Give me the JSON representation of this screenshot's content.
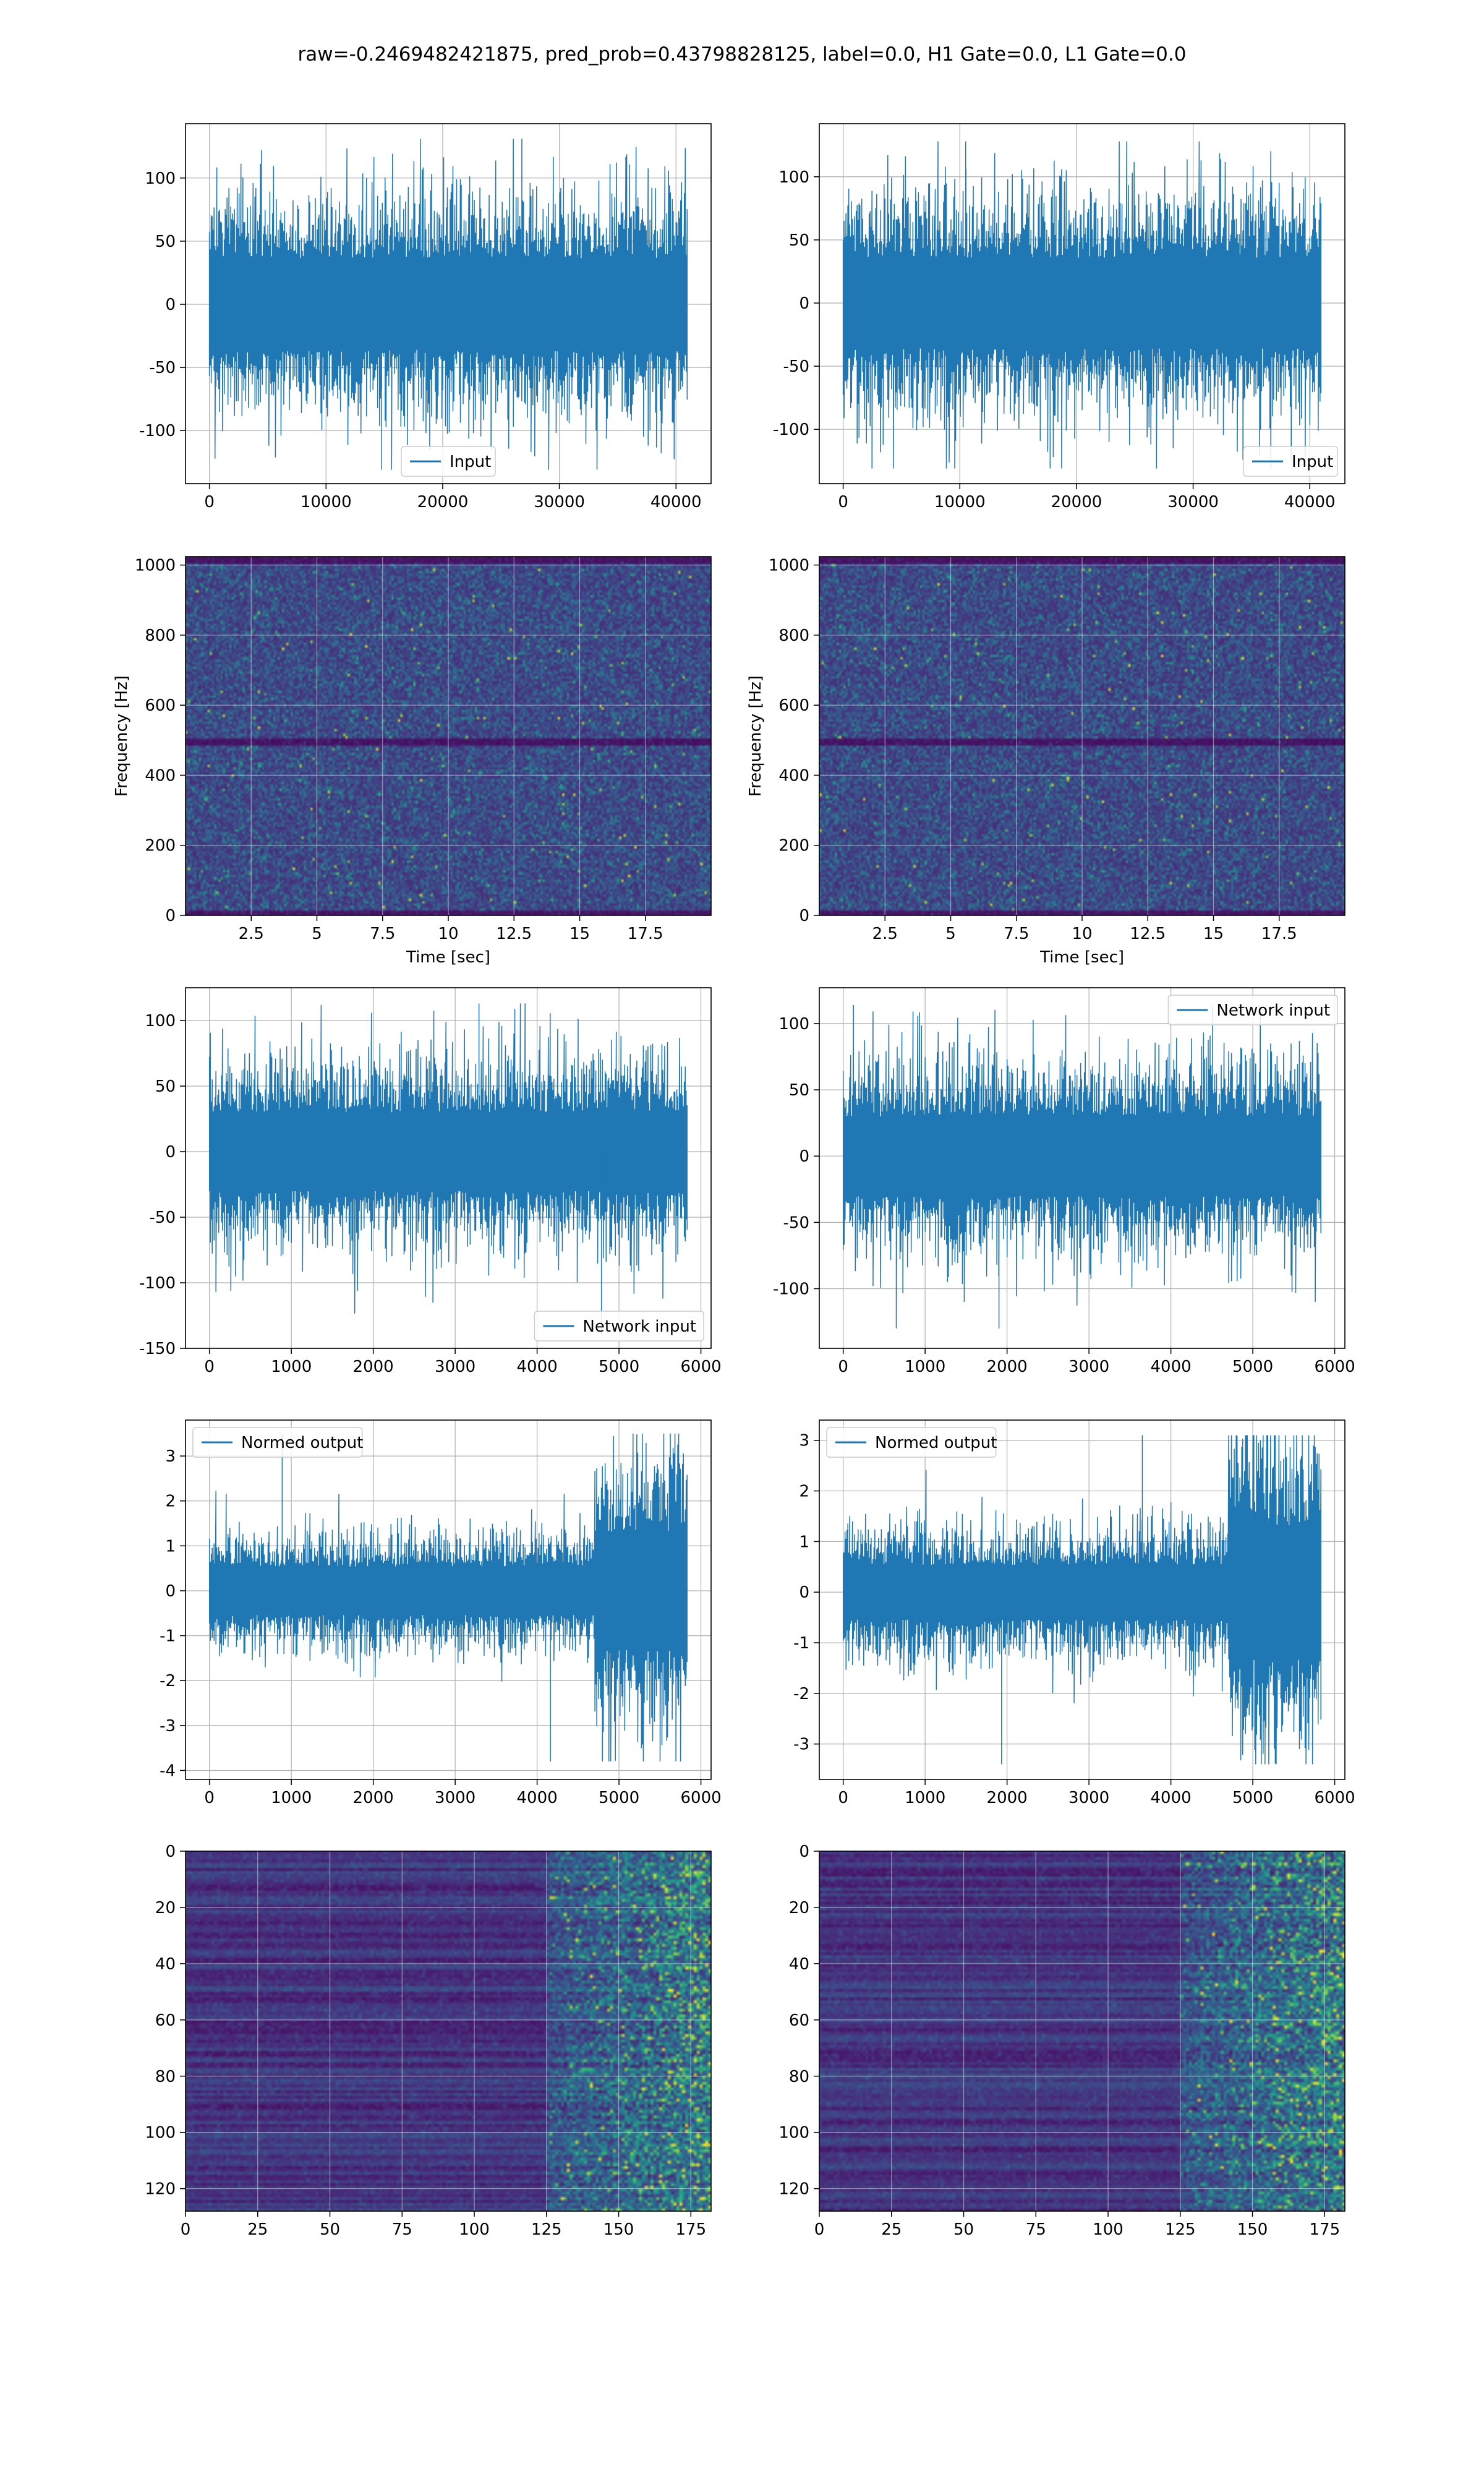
{
  "figure": {
    "title": "raw=-0.2469482421875, pred_prob=0.43798828125, label=0.0, H1 Gate=0.0, L1 Gate=0.0"
  },
  "colors": {
    "line": "#1f77b4",
    "grid": "#b0b0b0",
    "axes_edge": "#000000",
    "heatmap_low": "#440154",
    "heatmap_mid": "#21918c",
    "heatmap_high": "#fde725"
  },
  "chart_data": [
    {
      "id": "input-h1",
      "type": "line",
      "column": 0,
      "row": 0,
      "series": [
        {
          "name": "Input",
          "n_samples": 40960,
          "amplitude_std": 30,
          "peak_max": 131,
          "peak_min": -131
        }
      ],
      "xlim": [
        -2048,
        43008
      ],
      "ylim": [
        -142,
        143
      ],
      "xticks": [
        0,
        10000,
        20000,
        30000,
        40000
      ],
      "yticks": [
        100,
        50,
        0,
        -50,
        -100
      ],
      "xlabel": "",
      "ylabel": "",
      "grid": true,
      "legend": "lower center"
    },
    {
      "id": "input-l1",
      "type": "line",
      "column": 1,
      "row": 0,
      "series": [
        {
          "name": "Input",
          "n_samples": 40960,
          "amplitude_std": 30,
          "peak_max": 128,
          "peak_min": -131
        }
      ],
      "xlim": [
        -2048,
        43008
      ],
      "ylim": [
        -143,
        142
      ],
      "xticks": [
        0,
        10000,
        20000,
        30000,
        40000
      ],
      "yticks": [
        100,
        50,
        0,
        -50,
        -100
      ],
      "xlabel": "",
      "ylabel": "",
      "grid": true,
      "legend": "lower right"
    },
    {
      "id": "spectrogram-h1",
      "type": "heatmap",
      "column": 0,
      "row": 1,
      "x_range": [
        0,
        20
      ],
      "y_range": [
        0,
        1024
      ],
      "xticks": [
        2.5,
        5.0,
        7.5,
        10.0,
        12.5,
        15.0,
        17.5
      ],
      "yticks": [
        1000,
        800,
        600,
        400,
        200,
        0
      ],
      "xlabel": "Time [sec]",
      "ylabel": "Frequency [Hz]",
      "grid": true,
      "colormap": "viridis"
    },
    {
      "id": "spectrogram-l1",
      "type": "heatmap",
      "column": 1,
      "row": 1,
      "x_range": [
        0,
        20
      ],
      "y_range": [
        0,
        1024
      ],
      "xticks": [
        2.5,
        5.0,
        7.5,
        10.0,
        12.5,
        15.0,
        17.5
      ],
      "yticks": [
        1000,
        800,
        600,
        400,
        200,
        0
      ],
      "xlabel": "Time [sec]",
      "ylabel": "Frequency [Hz]",
      "grid": true,
      "colormap": "viridis"
    },
    {
      "id": "network-input-h1",
      "type": "line",
      "column": 0,
      "row": 2,
      "series": [
        {
          "name": "Network input",
          "n_samples": 5832,
          "amplitude_std": 25,
          "peak_max": 113,
          "peak_min": -140
        }
      ],
      "xlim": [
        -292,
        6124
      ],
      "ylim": [
        -150,
        125
      ],
      "xticks": [
        0,
        1000,
        2000,
        3000,
        4000,
        5000,
        6000
      ],
      "yticks": [
        100,
        50,
        0,
        -50,
        -100,
        -150
      ],
      "xlabel": "",
      "ylabel": "",
      "grid": true,
      "legend": "lower right"
    },
    {
      "id": "network-input-l1",
      "type": "line",
      "column": 1,
      "row": 2,
      "series": [
        {
          "name": "Network input",
          "n_samples": 5832,
          "amplitude_std": 25,
          "peak_max": 114,
          "peak_min": -130
        }
      ],
      "xlim": [
        -292,
        6124
      ],
      "ylim": [
        -145,
        127
      ],
      "xticks": [
        0,
        1000,
        2000,
        3000,
        4000,
        5000,
        6000
      ],
      "yticks": [
        100,
        50,
        0,
        -50,
        -100
      ],
      "xlabel": "",
      "ylabel": "",
      "grid": true,
      "legend": "upper right"
    },
    {
      "id": "normed-output-h1",
      "type": "line",
      "column": 0,
      "row": 3,
      "series": [
        {
          "name": "Normed output",
          "n_samples": 5832,
          "amplitude_std": 0.45,
          "burst_start": 4700,
          "burst_std": 1.1,
          "peak_max": 3.5,
          "peak_min": -3.8
        }
      ],
      "xlim": [
        -292,
        6124
      ],
      "ylim": [
        -4.2,
        3.8
      ],
      "xticks": [
        0,
        1000,
        2000,
        3000,
        4000,
        5000,
        6000
      ],
      "yticks": [
        3,
        2,
        1,
        0,
        -1,
        -2,
        -3,
        -4
      ],
      "xlabel": "",
      "ylabel": "",
      "grid": true,
      "legend": "upper left"
    },
    {
      "id": "normed-output-l1",
      "type": "line",
      "column": 1,
      "row": 3,
      "series": [
        {
          "name": "Normed output",
          "n_samples": 5832,
          "amplitude_std": 0.45,
          "burst_start": 4700,
          "burst_std": 1.1,
          "peak_max": 3.1,
          "peak_min": -3.4
        }
      ],
      "xlim": [
        -292,
        6124
      ],
      "ylim": [
        -3.7,
        3.4
      ],
      "xticks": [
        0,
        1000,
        2000,
        3000,
        4000,
        5000,
        6000
      ],
      "yticks": [
        3,
        2,
        1,
        0,
        -1,
        -2,
        -3
      ],
      "xlabel": "",
      "ylabel": "",
      "grid": true,
      "legend": "upper left"
    },
    {
      "id": "features-h1",
      "type": "heatmap",
      "column": 0,
      "row": 4,
      "x_range": [
        0,
        182
      ],
      "y_range": [
        0,
        128
      ],
      "active_from_x": 125,
      "xticks": [
        0,
        25,
        50,
        75,
        100,
        125,
        150,
        175
      ],
      "yticks": [
        0,
        20,
        40,
        60,
        80,
        100,
        120
      ],
      "xlabel": "",
      "ylabel": "",
      "grid": true,
      "colormap": "viridis"
    },
    {
      "id": "features-l1",
      "type": "heatmap",
      "column": 1,
      "row": 4,
      "x_range": [
        0,
        182
      ],
      "y_range": [
        0,
        128
      ],
      "active_from_x": 125,
      "xticks": [
        0,
        25,
        50,
        75,
        100,
        125,
        150,
        175
      ],
      "yticks": [
        0,
        20,
        40,
        60,
        80,
        100,
        120
      ],
      "xlabel": "",
      "ylabel": "",
      "grid": true,
      "colormap": "viridis"
    }
  ]
}
